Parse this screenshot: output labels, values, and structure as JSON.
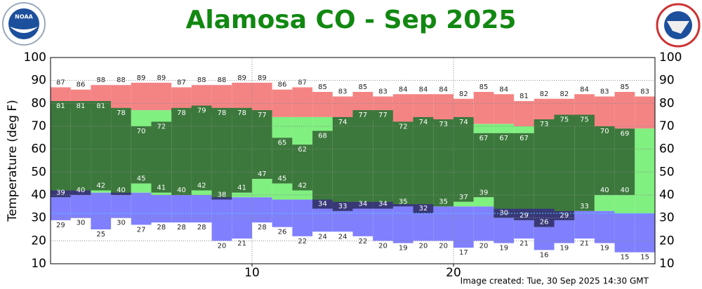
{
  "chart_data": {
    "type": "daily-temperature",
    "title": "Alamosa CO - Sep 2025",
    "y_label": "Temperature (deg F)",
    "footer": "Image created: Tue, 30 Sep 2025 14:30 GMT",
    "x": [
      1,
      2,
      3,
      4,
      5,
      6,
      7,
      8,
      9,
      10,
      11,
      12,
      13,
      14,
      15,
      16,
      17,
      18,
      19,
      20,
      21,
      22,
      23,
      24,
      25,
      26,
      27,
      28,
      29,
      30
    ],
    "xlim": [
      0,
      30
    ],
    "xticks": [
      10,
      20
    ],
    "ylim": [
      10,
      100
    ],
    "yticks": [
      10,
      20,
      30,
      40,
      50,
      60,
      70,
      80,
      90,
      100
    ],
    "grid": true,
    "freeze_line": 32,
    "record_high": [
      87,
      86,
      88,
      88,
      89,
      89,
      87,
      88,
      88,
      89,
      89,
      86,
      87,
      85,
      83,
      85,
      83,
      84,
      84,
      84,
      82,
      85,
      84,
      81,
      82,
      82,
      84,
      83,
      85,
      83
    ],
    "observed_high": [
      81,
      81,
      81,
      78,
      70,
      72,
      78,
      79,
      78,
      78,
      77,
      65,
      62,
      68,
      74,
      77,
      77,
      72,
      74,
      73,
      74,
      67,
      67,
      67,
      73,
      75,
      75,
      70,
      69,
      null
    ],
    "observed_low": [
      39,
      40,
      42,
      40,
      45,
      41,
      40,
      42,
      38,
      41,
      47,
      45,
      42,
      34,
      33,
      34,
      34,
      35,
      32,
      35,
      37,
      39,
      30,
      29,
      26,
      29,
      33,
      40,
      40,
      null
    ],
    "record_low": [
      29,
      30,
      25,
      30,
      27,
      28,
      28,
      28,
      20,
      21,
      28,
      26,
      22,
      24,
      24,
      22,
      20,
      19,
      20,
      20,
      17,
      20,
      19,
      21,
      16,
      19,
      21,
      19,
      15,
      15
    ],
    "normal_high": [
      78,
      78,
      78,
      77,
      77,
      77,
      76,
      76,
      75,
      75,
      75,
      74,
      74,
      74,
      73,
      73,
      73,
      72,
      72,
      72,
      71,
      71,
      71,
      70,
      70,
      70,
      70,
      69,
      69,
      69
    ],
    "normal_low": [
      42,
      42,
      41,
      41,
      41,
      40,
      40,
      40,
      39,
      39,
      39,
      38,
      38,
      38,
      37,
      37,
      37,
      36,
      36,
      35,
      35,
      35,
      34,
      34,
      34,
      33,
      33,
      33,
      32,
      32
    ],
    "colors": {
      "record_high": "#f48484",
      "above_normal": "#7a3434",
      "observed": "#3c783c",
      "normal": "#80f080",
      "below_normal": "#383878",
      "record_low": "#8080ff",
      "freeze": "#55ccff"
    }
  }
}
